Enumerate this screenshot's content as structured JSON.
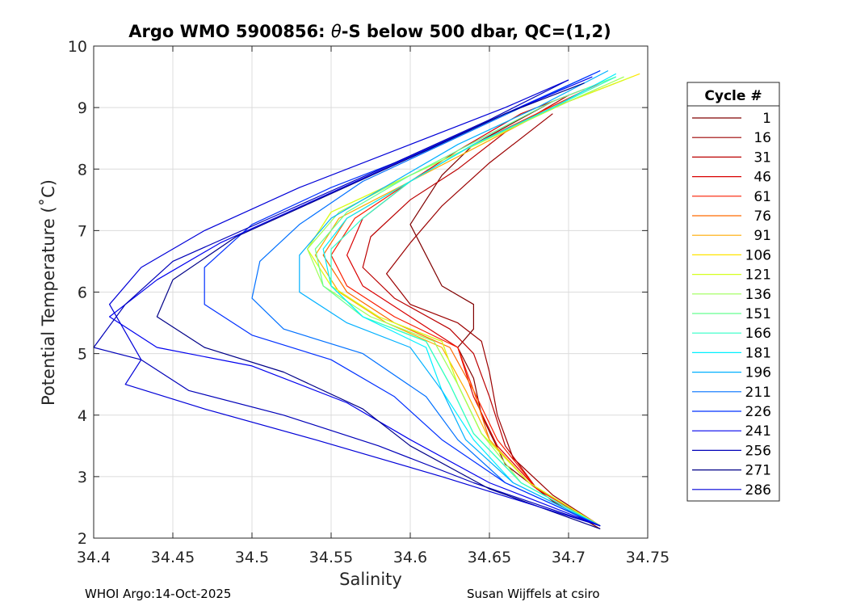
{
  "chart_data": {
    "type": "line",
    "title_parts": {
      "prefix": "Argo WMO 5900856: ",
      "theta": "θ",
      "suffix": "-S below 500 dbar,  QC=(1,2)"
    },
    "xlabel": "Salinity",
    "ylabel": "Potential Temperature (˚C)",
    "xlim": [
      34.4,
      34.75
    ],
    "ylim": [
      2,
      10
    ],
    "x_ticks": [
      "34.4",
      "34.45",
      "34.5",
      "34.55",
      "34.6",
      "34.65",
      "34.7",
      "34.75"
    ],
    "y_ticks": [
      "2",
      "3",
      "4",
      "5",
      "6",
      "7",
      "8",
      "9",
      "10"
    ],
    "grid": true,
    "legend": {
      "title": "Cycle #",
      "placement": "right-outside",
      "entries": [
        {
          "label": "1",
          "color": "#800000"
        },
        {
          "label": "16",
          "color": "#9b0000"
        },
        {
          "label": "31",
          "color": "#bb0000"
        },
        {
          "label": "46",
          "color": "#d90000"
        },
        {
          "label": "61",
          "color": "#fa1e00"
        },
        {
          "label": "76",
          "color": "#ff6a00"
        },
        {
          "label": "91",
          "color": "#ffaa00"
        },
        {
          "label": "106",
          "color": "#ffe500"
        },
        {
          "label": "121",
          "color": "#d6ff20"
        },
        {
          "label": "136",
          "color": "#9eff58"
        },
        {
          "label": "151",
          "color": "#66ff90"
        },
        {
          "label": "166",
          "color": "#30ffc7"
        },
        {
          "label": "181",
          "color": "#00f0ff"
        },
        {
          "label": "196",
          "color": "#00b0ff"
        },
        {
          "label": "211",
          "color": "#0070ff"
        },
        {
          "label": "226",
          "color": "#0030ff"
        },
        {
          "label": "241",
          "color": "#0000ee"
        },
        {
          "label": "256",
          "color": "#0000b8"
        },
        {
          "label": "271",
          "color": "#000088"
        },
        {
          "label": "286",
          "color": "#0000d8"
        }
      ]
    },
    "series": [
      {
        "name": "1",
        "color": "#800000",
        "x": [
          34.72,
          34.69,
          34.66,
          34.645,
          34.64,
          34.63,
          34.64,
          34.64,
          34.62,
          34.61,
          34.6,
          34.62,
          34.64,
          34.69
        ],
        "y": [
          2.15,
          2.6,
          3.2,
          4.0,
          4.6,
          5.1,
          5.4,
          5.8,
          6.1,
          6.6,
          7.1,
          7.9,
          8.4,
          9.1
        ]
      },
      {
        "name": "16",
        "color": "#9b0000",
        "x": [
          34.72,
          34.69,
          34.665,
          34.655,
          34.65,
          34.645,
          34.63,
          34.6,
          34.585,
          34.6,
          34.62,
          34.65,
          34.69
        ],
        "y": [
          2.2,
          2.7,
          3.3,
          4.0,
          4.7,
          5.2,
          5.5,
          5.8,
          6.3,
          6.8,
          7.4,
          8.1,
          8.9
        ]
      },
      {
        "name": "31",
        "color": "#bb0000",
        "x": [
          34.72,
          34.68,
          34.66,
          34.65,
          34.64,
          34.625,
          34.59,
          34.57,
          34.575,
          34.6,
          34.63,
          34.66,
          34.7
        ],
        "y": [
          2.2,
          2.8,
          3.5,
          4.3,
          5.0,
          5.4,
          5.9,
          6.4,
          6.9,
          7.5,
          8.0,
          8.6,
          9.2
        ]
      },
      {
        "name": "46",
        "color": "#d90000",
        "x": [
          34.72,
          34.68,
          34.655,
          34.64,
          34.63,
          34.6,
          34.57,
          34.56,
          34.57,
          34.6,
          34.63,
          34.67,
          34.71
        ],
        "y": [
          2.2,
          2.8,
          3.5,
          4.3,
          5.1,
          5.6,
          6.1,
          6.6,
          7.2,
          7.8,
          8.3,
          8.9,
          9.3
        ]
      },
      {
        "name": "61",
        "color": "#fa1e00",
        "x": [
          34.72,
          34.68,
          34.655,
          34.64,
          34.63,
          34.59,
          34.56,
          34.55,
          34.565,
          34.6,
          34.64,
          34.68,
          34.72
        ],
        "y": [
          2.2,
          2.8,
          3.6,
          4.4,
          5.1,
          5.6,
          6.1,
          6.6,
          7.2,
          7.8,
          8.4,
          8.9,
          9.4
        ]
      },
      {
        "name": "76",
        "color": "#ff6a00",
        "x": [
          34.72,
          34.675,
          34.65,
          34.64,
          34.625,
          34.59,
          34.56,
          34.545,
          34.56,
          34.6,
          34.64,
          34.69,
          34.73
        ],
        "y": [
          2.2,
          2.9,
          3.6,
          4.4,
          5.1,
          5.5,
          6.0,
          6.6,
          7.2,
          7.8,
          8.4,
          9.0,
          9.4
        ]
      },
      {
        "name": "91",
        "color": "#ffaa00",
        "x": [
          34.72,
          34.675,
          34.65,
          34.635,
          34.62,
          34.585,
          34.555,
          34.54,
          34.555,
          34.6,
          34.645,
          34.69,
          34.735
        ],
        "y": [
          2.2,
          2.9,
          3.6,
          4.4,
          5.1,
          5.5,
          6.0,
          6.6,
          7.2,
          7.8,
          8.4,
          9.0,
          9.45
        ]
      },
      {
        "name": "106",
        "color": "#ffe500",
        "x": [
          34.72,
          34.675,
          34.645,
          34.63,
          34.62,
          34.58,
          34.55,
          34.535,
          34.55,
          34.6,
          34.65,
          34.7,
          34.745
        ],
        "y": [
          2.2,
          2.9,
          3.7,
          4.5,
          5.2,
          5.6,
          6.1,
          6.7,
          7.3,
          7.9,
          8.5,
          9.1,
          9.55
        ]
      },
      {
        "name": "121",
        "color": "#d6ff20",
        "x": [
          34.72,
          34.675,
          34.645,
          34.63,
          34.62,
          34.58,
          34.55,
          34.535,
          34.55,
          34.6,
          34.65,
          34.7,
          34.74
        ],
        "y": [
          2.2,
          2.9,
          3.7,
          4.5,
          5.2,
          5.6,
          6.1,
          6.7,
          7.3,
          7.9,
          8.5,
          9.1,
          9.5
        ]
      },
      {
        "name": "136",
        "color": "#9eff58",
        "x": [
          34.72,
          34.67,
          34.645,
          34.63,
          34.615,
          34.575,
          34.545,
          34.535,
          34.555,
          34.6,
          34.65,
          34.7,
          34.735
        ],
        "y": [
          2.2,
          2.9,
          3.7,
          4.5,
          5.2,
          5.6,
          6.1,
          6.7,
          7.3,
          7.9,
          8.5,
          9.1,
          9.5
        ]
      },
      {
        "name": "151",
        "color": "#66ff90",
        "x": [
          34.72,
          34.67,
          34.64,
          34.625,
          34.61,
          34.57,
          34.545,
          34.54,
          34.56,
          34.6,
          34.645,
          34.69,
          34.73
        ],
        "y": [
          2.2,
          2.9,
          3.7,
          4.5,
          5.2,
          5.6,
          6.1,
          6.7,
          7.3,
          7.9,
          8.5,
          9.1,
          9.5
        ]
      },
      {
        "name": "166",
        "color": "#30ffc7",
        "x": [
          34.72,
          34.67,
          34.64,
          34.625,
          34.61,
          34.57,
          34.55,
          34.55,
          34.57,
          34.6,
          34.64,
          34.69,
          34.73
        ],
        "y": [
          2.2,
          2.9,
          3.7,
          4.5,
          5.2,
          5.6,
          6.1,
          6.7,
          7.2,
          7.8,
          8.4,
          9.0,
          9.5
        ]
      },
      {
        "name": "181",
        "color": "#00f0ff",
        "x": [
          34.72,
          34.665,
          34.64,
          34.62,
          34.61,
          34.57,
          34.55,
          34.545,
          34.56,
          34.6,
          34.64,
          34.69,
          34.73
        ],
        "y": [
          2.2,
          2.9,
          3.6,
          4.4,
          5.1,
          5.6,
          6.1,
          6.7,
          7.2,
          7.8,
          8.4,
          9.0,
          9.55
        ]
      },
      {
        "name": "196",
        "color": "#00b0ff",
        "x": [
          34.72,
          34.665,
          34.635,
          34.62,
          34.6,
          34.56,
          34.53,
          34.53,
          34.55,
          34.59,
          34.63,
          34.68,
          34.725
        ],
        "y": [
          2.2,
          2.9,
          3.6,
          4.4,
          5.1,
          5.5,
          6.0,
          6.6,
          7.2,
          7.8,
          8.4,
          9.0,
          9.6
        ]
      },
      {
        "name": "211",
        "color": "#0070ff",
        "x": [
          34.72,
          34.66,
          34.63,
          34.61,
          34.57,
          34.52,
          34.5,
          34.505,
          34.53,
          34.57,
          34.62,
          34.67,
          34.72
        ],
        "y": [
          2.2,
          2.9,
          3.6,
          4.3,
          5.0,
          5.4,
          5.9,
          6.5,
          7.1,
          7.8,
          8.4,
          9.0,
          9.6
        ]
      },
      {
        "name": "226",
        "color": "#0030ff",
        "x": [
          34.72,
          34.66,
          34.62,
          34.59,
          34.55,
          34.5,
          34.47,
          34.47,
          34.5,
          34.55,
          34.61,
          34.66,
          34.72
        ],
        "y": [
          2.2,
          2.9,
          3.6,
          4.3,
          4.9,
          5.3,
          5.8,
          6.4,
          7.1,
          7.7,
          8.3,
          8.9,
          9.6
        ]
      },
      {
        "name": "241",
        "color": "#0000ee",
        "x": [
          34.72,
          34.65,
          34.6,
          34.56,
          34.5,
          34.44,
          34.41,
          34.44,
          34.48,
          34.54,
          34.6,
          34.66,
          34.715
        ],
        "y": [
          2.2,
          2.9,
          3.6,
          4.2,
          4.8,
          5.1,
          5.6,
          6.2,
          6.8,
          7.5,
          8.2,
          8.9,
          9.5
        ]
      },
      {
        "name": "256",
        "color": "#0000b8",
        "x": [
          34.72,
          34.64,
          34.58,
          34.52,
          34.46,
          34.43,
          34.4,
          34.42,
          34.45,
          34.52,
          34.59,
          34.65,
          34.7
        ],
        "y": [
          2.2,
          2.9,
          3.5,
          4.0,
          4.4,
          4.9,
          5.1,
          5.8,
          6.5,
          7.3,
          8.1,
          8.8,
          9.45
        ]
      },
      {
        "name": "271",
        "color": "#000088",
        "x": [
          34.72,
          34.65,
          34.6,
          34.57,
          34.52,
          34.47,
          34.44,
          34.45,
          34.49,
          34.55,
          34.61,
          34.66,
          34.71
        ],
        "y": [
          2.15,
          2.8,
          3.5,
          4.1,
          4.7,
          5.1,
          5.6,
          6.2,
          6.9,
          7.6,
          8.3,
          8.9,
          9.4
        ]
      },
      {
        "name": "286",
        "color": "#0000d8",
        "x": [
          34.72,
          34.62,
          34.54,
          34.47,
          34.42,
          34.43,
          34.41,
          34.43,
          34.47,
          34.53,
          34.6,
          34.66,
          34.7
        ],
        "y": [
          2.2,
          3.0,
          3.6,
          4.1,
          4.5,
          4.9,
          5.8,
          6.4,
          7.0,
          7.7,
          8.4,
          9.0,
          9.45
        ]
      }
    ]
  },
  "footer": {
    "left": "WHOI Argo:14-Oct-2025",
    "right": "Susan Wijffels at csiro"
  }
}
